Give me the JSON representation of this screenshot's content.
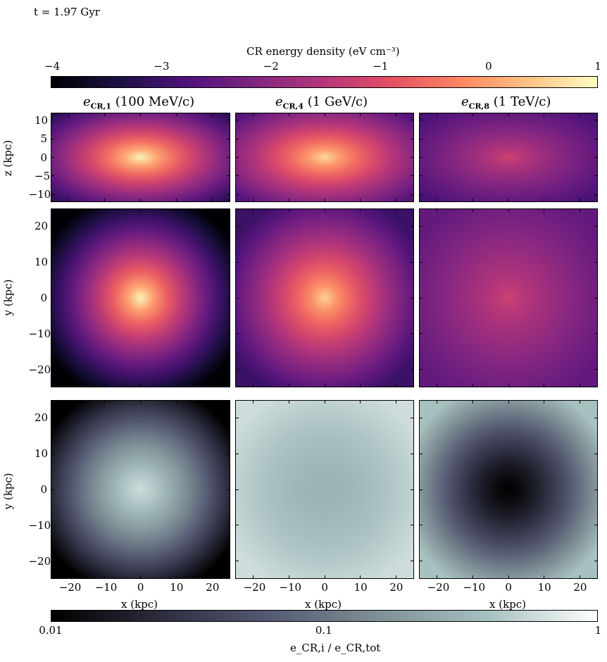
{
  "time_label": "t = 1.97 Gyr",
  "top_colorbar": {
    "label": "CR energy density (eV cm⁻³)",
    "ticks": [
      "−4",
      "−3",
      "−2",
      "−1",
      "0",
      "1"
    ],
    "tick_values": [
      -4,
      -3,
      -2,
      -1,
      0,
      1
    ],
    "colormap": "magma",
    "colors": [
      "#000004",
      "#1c1044",
      "#4f127b",
      "#812581",
      "#b5367a",
      "#e55064",
      "#fb8761",
      "#fec287",
      "#fcfdbf"
    ]
  },
  "bottom_colorbar": {
    "label": "e_CR,i / e_CR,tot",
    "ticks": [
      "0.01",
      "0.1",
      "1"
    ],
    "tick_values": [
      0.01,
      0.1,
      1
    ],
    "scale": "log",
    "colormap": "bone",
    "colors": [
      "#000000",
      "#2b2b3d",
      "#555a73",
      "#7f9096",
      "#a7c0c0",
      "#ffffff"
    ]
  },
  "columns": [
    {
      "title_sym": "e",
      "title_sub": "CR,1",
      "title_rest": " (100 MeV/c)"
    },
    {
      "title_sym": "e",
      "title_sub": "CR,4",
      "title_rest": " (1 GeV/c)"
    },
    {
      "title_sym": "e",
      "title_sub": "CR,8",
      "title_rest": " (1 TeV/c)"
    }
  ],
  "axes": {
    "row1_ylabel": "z (kpc)",
    "row1_yticks": [
      "10",
      "5",
      "0",
      "−5",
      "−10"
    ],
    "row1_yrange": [
      -12,
      12
    ],
    "row2_ylabel": "y (kpc)",
    "row2_yticks": [
      "20",
      "10",
      "0",
      "−10",
      "−20"
    ],
    "row3_ylabel": "y (kpc)",
    "row3_yticks": [
      "20",
      "10",
      "0",
      "−10",
      "−20"
    ],
    "xy_range": [
      -25,
      25
    ],
    "xlabel": "x (kpc)",
    "xticks": [
      "−20",
      "−10",
      "0",
      "10",
      "20"
    ]
  },
  "chart_data": {
    "type": "heatmap",
    "panels": [
      {
        "row": "edge-on",
        "column": "CR,1 (100 MeV/c)",
        "colorbar": "top",
        "center_log_value": 0.9,
        "edge_log_value": -3.5
      },
      {
        "row": "edge-on",
        "column": "CR,4 (1 GeV/c)",
        "colorbar": "top",
        "center_log_value": 0.6,
        "edge_log_value": -3.0
      },
      {
        "row": "edge-on",
        "column": "CR,8 (1 TeV/c)",
        "colorbar": "top",
        "center_log_value": -1.2,
        "edge_log_value": -3.0
      },
      {
        "row": "face-on",
        "column": "CR,1 (100 MeV/c)",
        "colorbar": "top",
        "center_log_value": 0.9,
        "edge_log_value": -4.0
      },
      {
        "row": "face-on",
        "column": "CR,4 (1 GeV/c)",
        "colorbar": "top",
        "center_log_value": 0.5,
        "edge_log_value": -3.0
      },
      {
        "row": "face-on",
        "column": "CR,8 (1 TeV/c)",
        "colorbar": "top",
        "center_log_value": -1.2,
        "edge_log_value": -2.5
      },
      {
        "row": "fraction",
        "column": "CR,1 (100 MeV/c)",
        "colorbar": "bottom",
        "center_value": 0.6,
        "edge_value": 0.01
      },
      {
        "row": "fraction",
        "column": "CR,4 (1 GeV/c)",
        "colorbar": "bottom",
        "center_value": 0.3,
        "edge_value": 0.6
      },
      {
        "row": "fraction",
        "column": "CR,8 (1 TeV/c)",
        "colorbar": "bottom",
        "center_value": 0.01,
        "edge_value": 0.4
      }
    ]
  }
}
